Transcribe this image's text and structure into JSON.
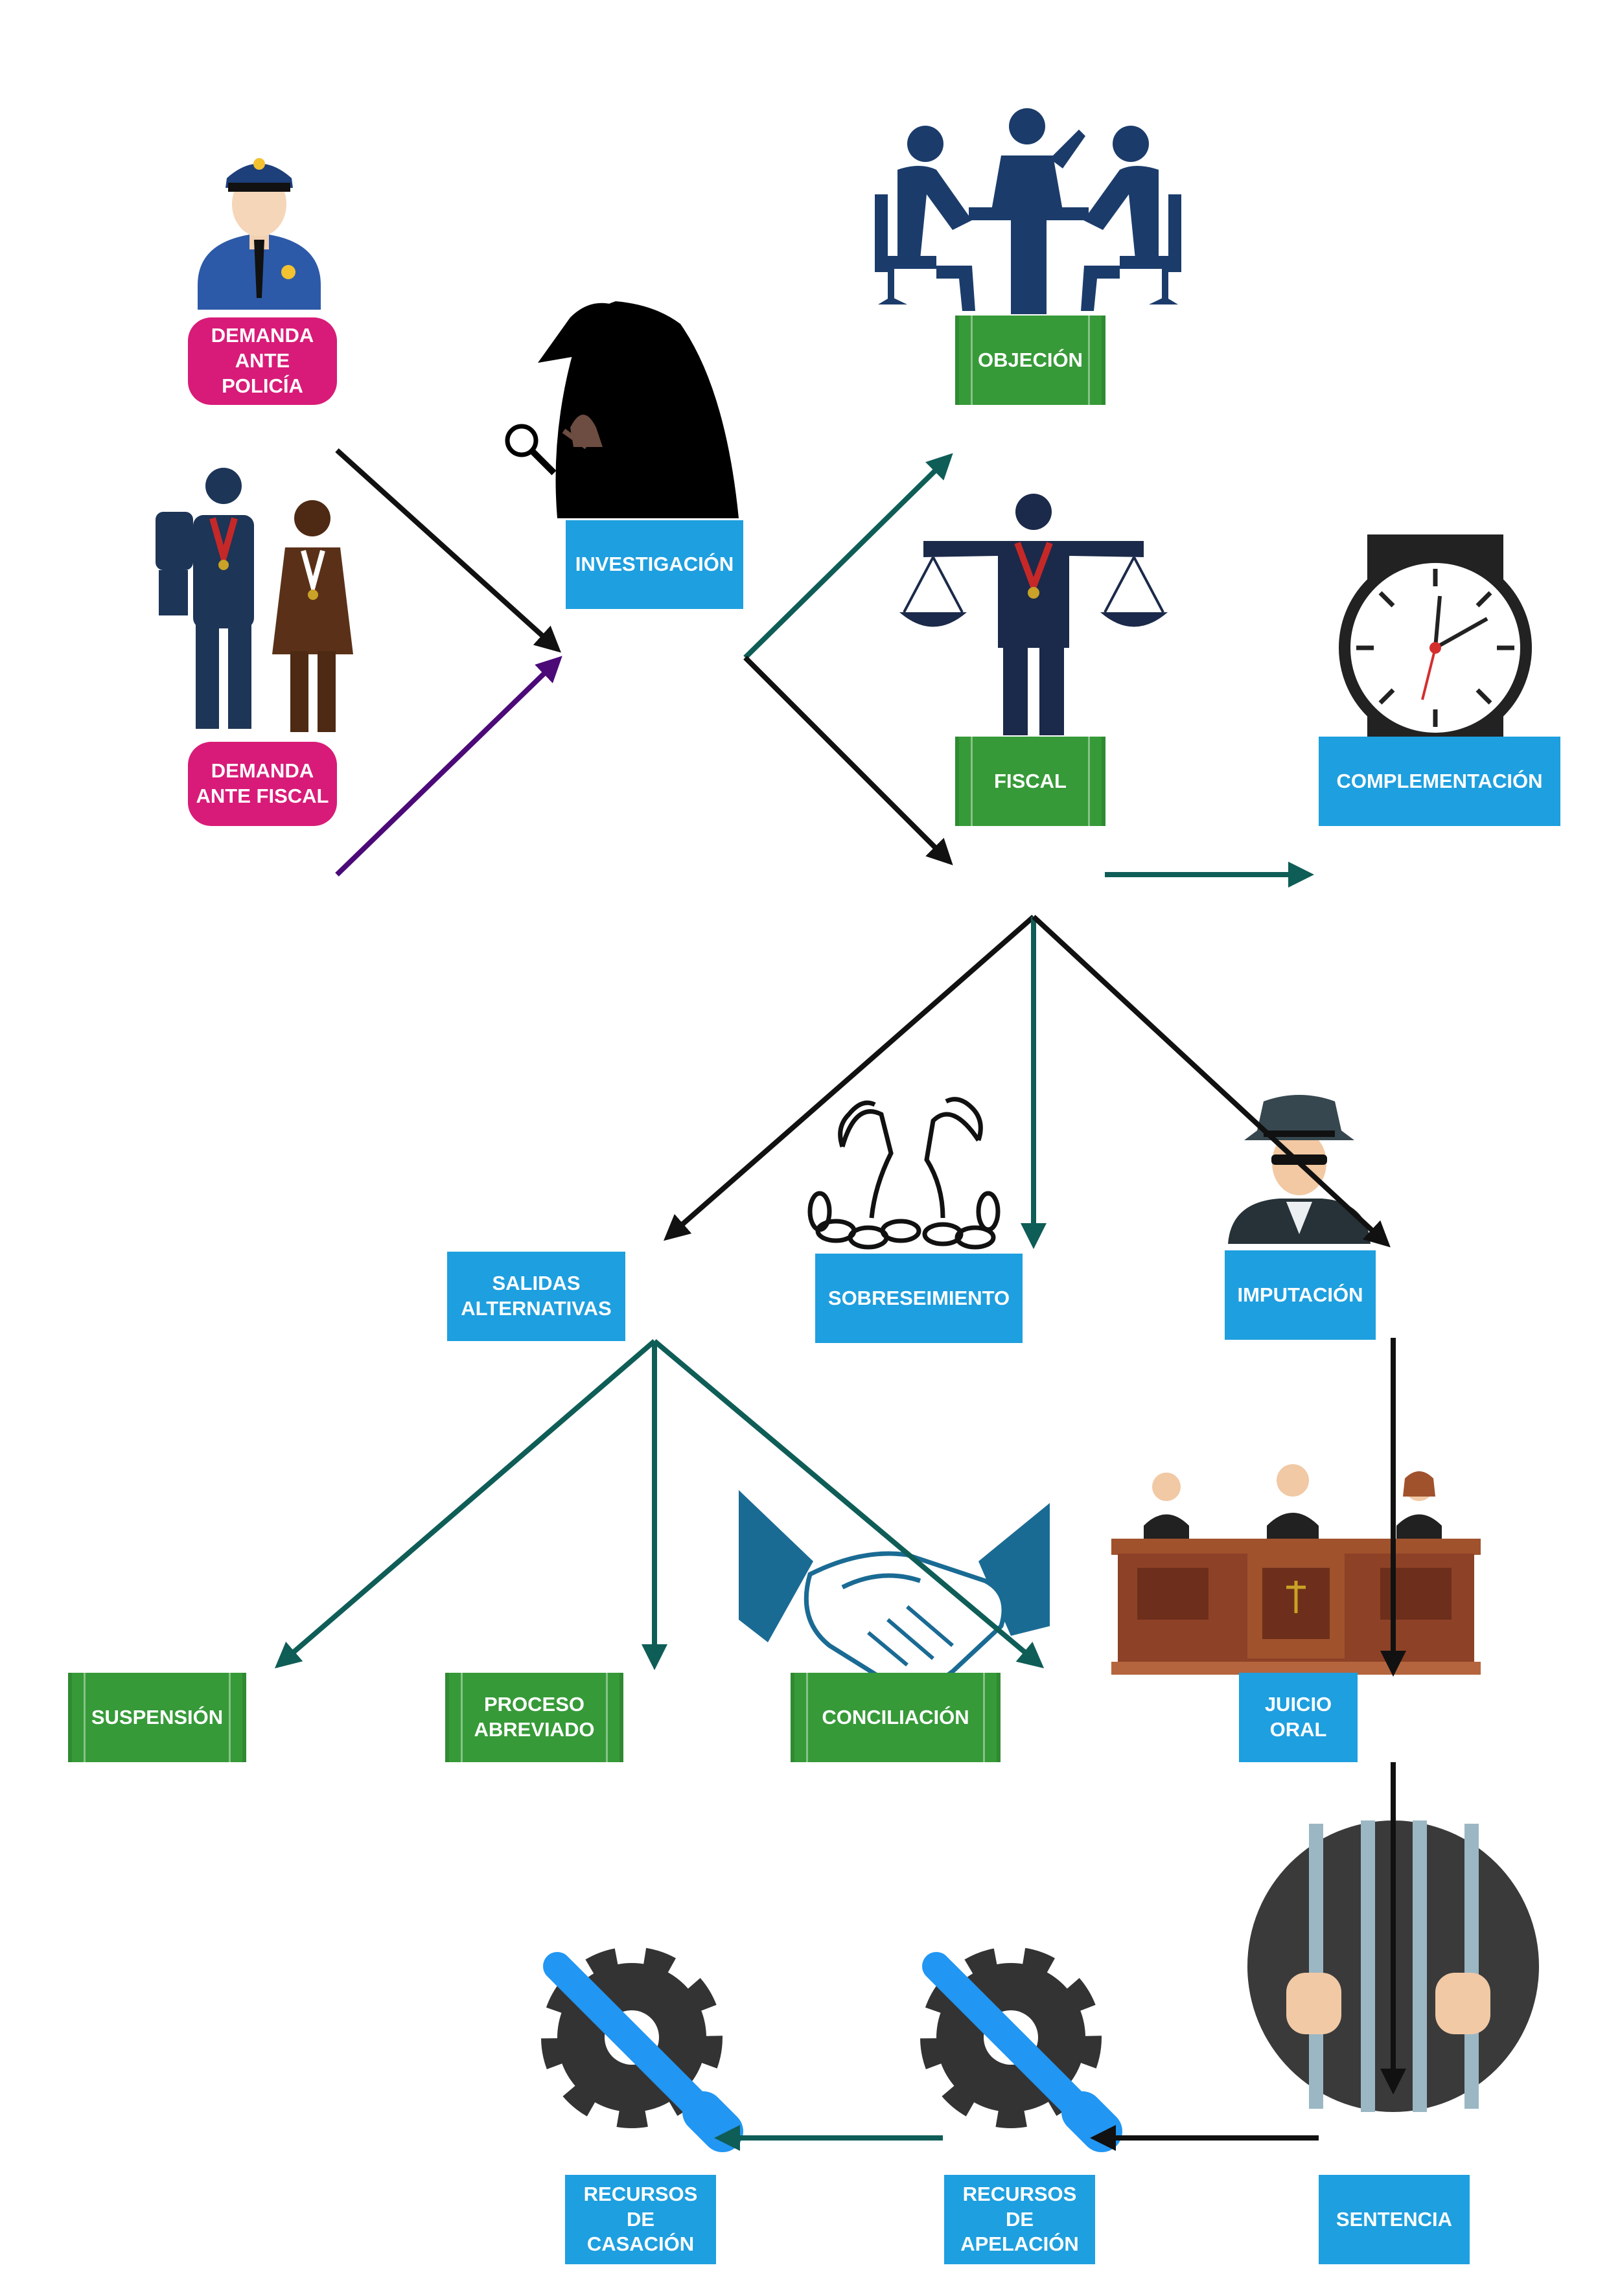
{
  "nodes": {
    "demanda_policia": "DEMANDA\nANTE\nPOLICÍA",
    "demanda_fiscal": "DEMANDA\nANTE FISCAL",
    "investigacion": "INVESTIGACIÓN",
    "objecion": "OBJECIÓN",
    "fiscal": "FISCAL",
    "complementacion": "COMPLEMENTACIÓN",
    "salidas_alternativas": "SALIDAS\nALTERNATIVAS",
    "sobreseimiento": "SOBRESEIMIENTO",
    "imputacion": "IMPUTACIÓN",
    "suspension": "SUSPENSIÓN",
    "proceso_abreviado": "PROCESO\nABREVIADO",
    "conciliacion": "CONCILIACIÓN",
    "juicio_oral": "JUICIO\nORAL",
    "sentencia": "SENTENCIA",
    "recursos_apelacion": "RECURSOS DE\nAPELACIÓN",
    "recursos_casacion": "RECURSOS DE\nCASACIÓN"
  },
  "colors": {
    "blue": "#1e9fdf",
    "green": "#369a38",
    "pink": "#d81b78",
    "arrow_black": "#111111",
    "arrow_teal": "#0f5d57",
    "arrow_purple": "#4b0a78",
    "navy": "#1d3557"
  },
  "icons": [
    "police-officer-icon",
    "stop-hand-couple-icon",
    "detective-icon",
    "meeting-icon",
    "prosecutor-scales-icon",
    "wristwatch-icon",
    "broken-chains-icon",
    "spy-icon",
    "handshake-icon",
    "court-judges-icon",
    "prison-bars-icon",
    "wrench-gear-icon"
  ]
}
